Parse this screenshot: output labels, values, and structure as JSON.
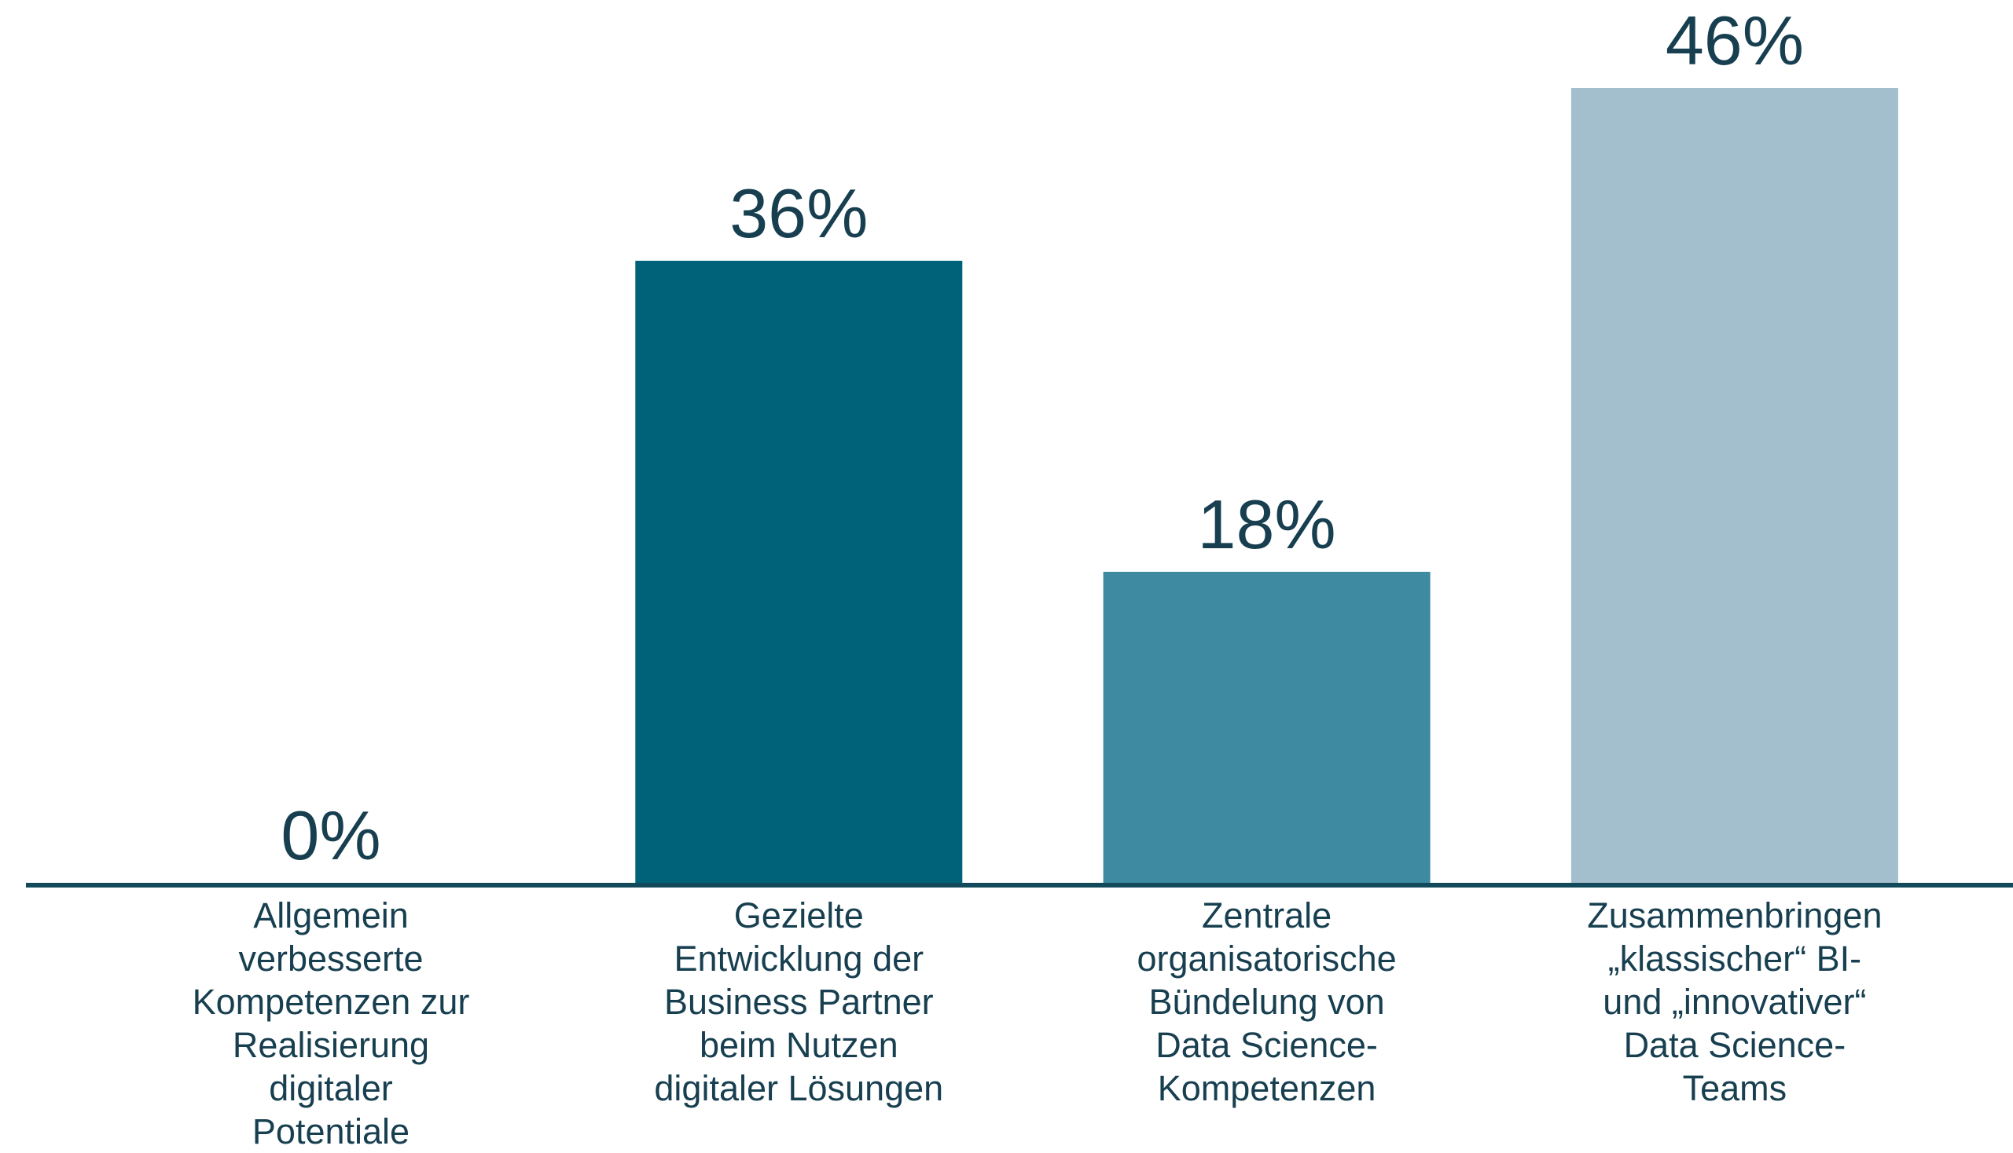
{
  "chart_data": {
    "type": "bar",
    "categories": [
      "Allgemein\nverbesserte\nKompetenzen zur\nRealisierung\ndigitaler\nPotentiale",
      "Gezielte\nEntwicklung der\nBusiness Partner\nbeim Nutzen\ndigitaler Lösungen",
      "Zentrale\norganisatorische\nBündelung von\nData Science-\nKompetenzen",
      "Zusammenbringen\n„klassischer“ BI-\nund „innovativer“\nData Science-\nTeams"
    ],
    "values": [
      0,
      36,
      18,
      46
    ],
    "value_labels": [
      "0%",
      "36%",
      "18%",
      "46%"
    ],
    "colors": [
      "#006278",
      "#006278",
      "#3e8aa0",
      "#a3bfcd"
    ],
    "ylim": [
      0,
      50
    ]
  }
}
